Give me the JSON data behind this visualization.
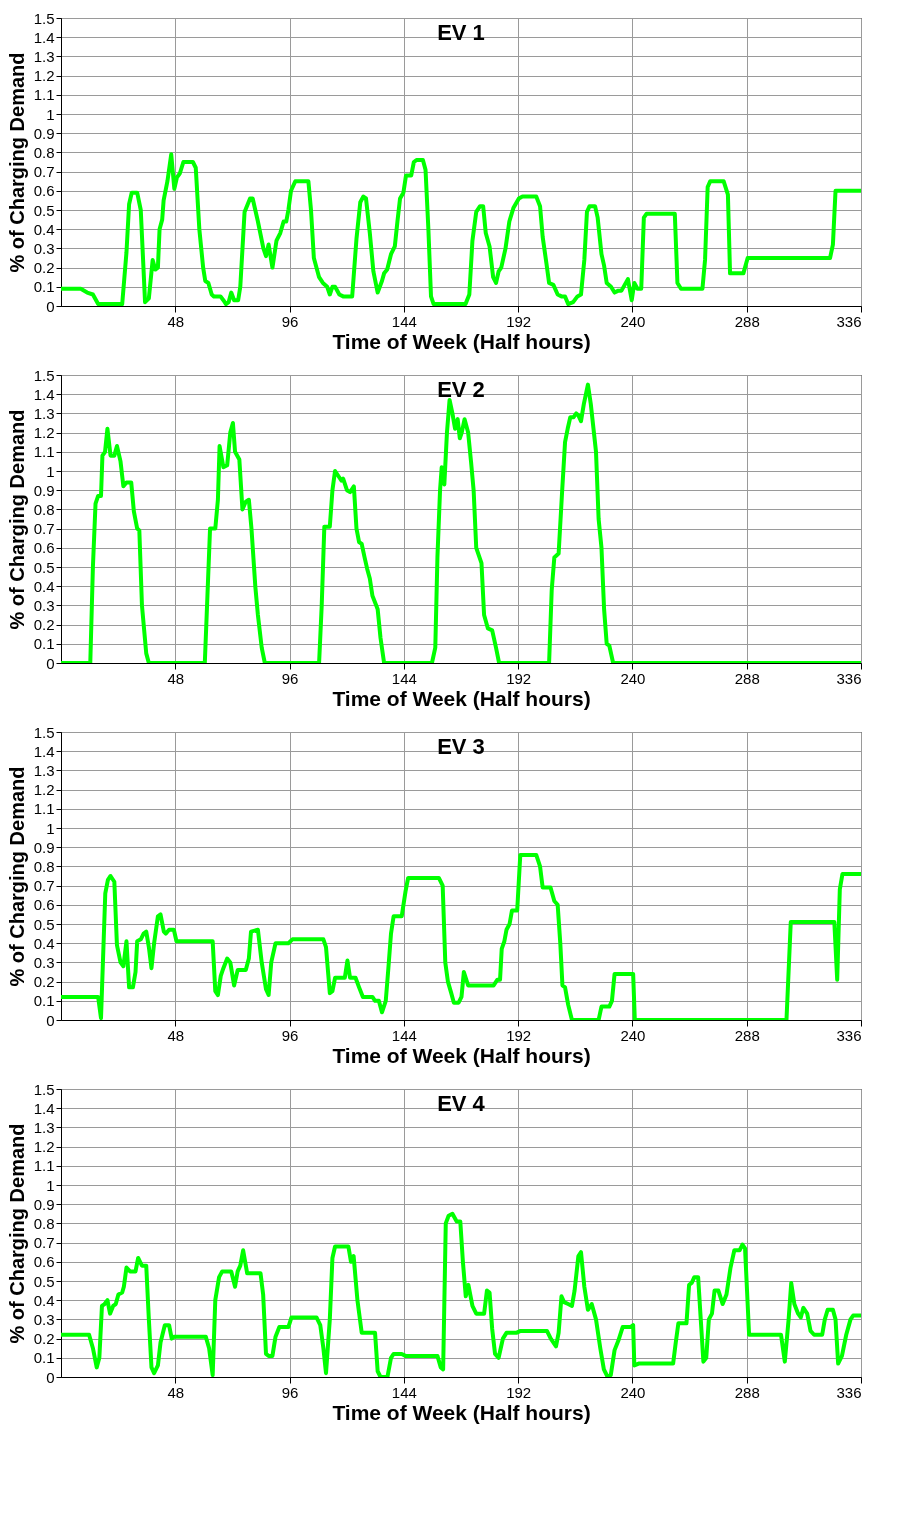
{
  "chart_data": [
    {
      "type": "line",
      "title": "EV 1",
      "xlabel": "Time of Week (Half hours)",
      "ylabel": "% of Charging Demand",
      "xlim": [
        0,
        336
      ],
      "xticks": [
        48,
        96,
        144,
        192,
        240,
        288,
        336
      ],
      "ylim": [
        0,
        1.5
      ],
      "yticks": [
        0,
        0.1,
        0.2,
        0.3,
        0.4,
        0.5,
        0.6,
        0.7,
        0.8,
        0.9,
        1,
        1.1,
        1.2,
        1.3,
        1.4,
        1.5
      ],
      "grid": true,
      "series": [
        {
          "color": "#00ff00",
          "x": [
            0,
            8.3,
            11,
            13.4,
            15.6,
            25.7,
            27.5,
            28.6,
            29.7,
            32,
            33.5,
            35.3,
            36.9,
            38.5,
            39.6,
            40.7,
            41.4,
            42.5,
            43.1,
            44.7,
            46.3,
            47.6,
            48.7,
            49.9,
            51.4,
            55.4,
            56.6,
            58.1,
            59.7,
            60.6,
            61.9,
            63.3,
            64.2,
            67,
            68.2,
            69.3,
            70.4,
            71.5,
            72.7,
            74.4,
            75.3,
            77.1,
            79.4,
            80.5,
            82.7,
            85,
            86.1,
            87.2,
            88.8,
            90.5,
            92.1,
            93.5,
            94.6,
            95.5,
            96.6,
            98.4,
            103.9,
            105,
            106.2,
            108.4,
            110,
            111.8,
            112.9,
            114,
            115.1,
            116.9,
            118.5,
            122.3,
            124.1,
            125.7,
            127,
            128.1,
            129.7,
            131.2,
            133,
            134.8,
            135.7,
            137,
            138.6,
            140.2,
            141.3,
            142.4,
            143.8,
            144.9,
            147.1,
            148.2,
            149.3,
            152,
            153.1,
            154.3,
            155.4,
            156.5,
            169.9,
            171.5,
            172.8,
            174.4,
            176,
            177.3,
            178.4,
            180,
            181.5,
            182.7,
            183.8,
            184.9,
            186.7,
            188.3,
            190,
            192.3,
            193.8,
            199.6,
            201.2,
            202.3,
            203.9,
            205,
            206.8,
            208.6,
            210.2,
            211.7,
            213,
            215.1,
            216.9,
            218.4,
            219.8,
            220.9,
            222,
            224.3,
            225.4,
            227,
            228.1,
            229.2,
            231,
            232.5,
            234.1,
            235.4,
            238.1,
            239.7,
            240.8,
            242.1,
            243.7,
            244.8,
            245.9,
            257.8,
            258.9,
            260.4,
            269.4,
            270.5,
            271.6,
            272.7,
            278.3,
            280.1,
            281,
            286.6,
            288.4,
            323,
            324.2,
            325.3,
            336
          ],
          "values": [
            0.09,
            0.09,
            0.07,
            0.06,
            0.01,
            0.01,
            0.28,
            0.53,
            0.59,
            0.59,
            0.5,
            0.02,
            0.04,
            0.24,
            0.19,
            0.2,
            0.4,
            0.45,
            0.55,
            0.65,
            0.79,
            0.61,
            0.67,
            0.69,
            0.75,
            0.75,
            0.72,
            0.4,
            0.2,
            0.13,
            0.12,
            0.06,
            0.05,
            0.05,
            0.03,
            0.01,
            0.02,
            0.07,
            0.03,
            0.03,
            0.1,
            0.49,
            0.56,
            0.56,
            0.44,
            0.3,
            0.26,
            0.32,
            0.2,
            0.34,
            0.38,
            0.44,
            0.44,
            0.5,
            0.6,
            0.65,
            0.65,
            0.5,
            0.25,
            0.15,
            0.12,
            0.1,
            0.06,
            0.1,
            0.1,
            0.06,
            0.05,
            0.05,
            0.35,
            0.54,
            0.57,
            0.56,
            0.38,
            0.18,
            0.07,
            0.13,
            0.17,
            0.19,
            0.27,
            0.31,
            0.44,
            0.56,
            0.59,
            0.68,
            0.68,
            0.75,
            0.76,
            0.76,
            0.71,
            0.4,
            0.05,
            0.01,
            0.01,
            0.06,
            0.34,
            0.49,
            0.52,
            0.52,
            0.38,
            0.31,
            0.15,
            0.12,
            0.18,
            0.2,
            0.3,
            0.44,
            0.51,
            0.56,
            0.57,
            0.57,
            0.52,
            0.36,
            0.22,
            0.12,
            0.11,
            0.06,
            0.05,
            0.05,
            0.01,
            0.02,
            0.05,
            0.06,
            0.24,
            0.49,
            0.52,
            0.52,
            0.46,
            0.27,
            0.21,
            0.12,
            0.1,
            0.07,
            0.08,
            0.08,
            0.14,
            0.03,
            0.12,
            0.09,
            0.09,
            0.46,
            0.48,
            0.48,
            0.12,
            0.09,
            0.09,
            0.24,
            0.62,
            0.65,
            0.65,
            0.58,
            0.17,
            0.17,
            0.25,
            0.25,
            0.32,
            0.6,
            0.6
          ]
        }
      ]
    },
    {
      "type": "line",
      "title": "EV 2",
      "xlabel": "Time of Week (Half hours)",
      "ylabel": "% of Charging Demand",
      "xlim": [
        0,
        336
      ],
      "xticks": [
        48,
        96,
        144,
        192,
        240,
        288,
        336
      ],
      "ylim": [
        0,
        1.5
      ],
      "yticks": [
        0,
        0.1,
        0.2,
        0.3,
        0.4,
        0.5,
        0.6,
        0.7,
        0.8,
        0.9,
        1,
        1.1,
        1.2,
        1.3,
        1.4,
        1.5
      ],
      "grid": true,
      "series": [
        {
          "color": "#00ff00",
          "x": [
            0,
            12.3,
            13.4,
            14.5,
            15.6,
            16.8,
            17.4,
            18.5,
            19.5,
            20.8,
            22.4,
            23.5,
            25,
            26.2,
            27.5,
            29.5,
            30.6,
            32,
            32.9,
            34,
            35.8,
            36.9,
            60.4,
            61.5,
            62.6,
            64.8,
            65.9,
            66.6,
            68.2,
            69.8,
            71.1,
            72.2,
            73.1,
            74.9,
            76.2,
            77.6,
            78.9,
            80,
            81.6,
            82.7,
            84.3,
            85.6,
            108.4,
            109.5,
            110.6,
            112.9,
            114,
            115.1,
            116.7,
            117.8,
            118.5,
            120.1,
            121.4,
            123,
            124.1,
            125.2,
            126.3,
            127.5,
            128.6,
            129.7,
            130.8,
            132.4,
            133,
            134.2,
            135.7,
            155.8,
            157.2,
            158.1,
            159.2,
            159.9,
            161,
            162.1,
            163.2,
            164.4,
            165.5,
            166.6,
            167.5,
            168.3,
            169.5,
            171,
            172.2,
            173.3,
            174.4,
            176.6,
            177.7,
            179.3,
            181.1,
            182.7,
            184,
            205,
            206.1,
            207.2,
            209,
            210.5,
            211.7,
            212.8,
            213.9,
            215.3,
            216.4,
            217.3,
            218.4,
            219.6,
            221.3,
            222.5,
            224.7,
            225.8,
            227,
            228.1,
            229.2,
            230.3,
            231.9,
            336
          ],
          "values": [
            0,
            0,
            0.5,
            0.83,
            0.87,
            0.87,
            1.08,
            1.1,
            1.22,
            1.08,
            1.08,
            1.13,
            1.05,
            0.92,
            0.94,
            0.94,
            0.79,
            0.7,
            0.69,
            0.3,
            0.05,
            0,
            0,
            0.35,
            0.7,
            0.7,
            0.85,
            1.13,
            1.02,
            1.03,
            1.2,
            1.25,
            1.1,
            1.06,
            0.8,
            0.84,
            0.85,
            0.7,
            0.4,
            0.25,
            0.08,
            0,
            0,
            0.3,
            0.71,
            0.71,
            0.9,
            1,
            0.97,
            0.95,
            0.96,
            0.9,
            0.89,
            0.92,
            0.7,
            0.63,
            0.62,
            0.55,
            0.49,
            0.44,
            0.35,
            0.3,
            0.28,
            0.13,
            0,
            0,
            0.08,
            0.55,
            0.9,
            1.02,
            0.93,
            1.2,
            1.37,
            1.3,
            1.22,
            1.27,
            1.17,
            1.2,
            1.27,
            1.2,
            1.05,
            0.9,
            0.6,
            0.52,
            0.25,
            0.18,
            0.17,
            0.08,
            0,
            0,
            0.38,
            0.55,
            0.57,
            0.9,
            1.15,
            1.22,
            1.28,
            1.28,
            1.3,
            1.29,
            1.26,
            1.35,
            1.45,
            1.35,
            1.1,
            0.75,
            0.6,
            0.28,
            0.1,
            0.09,
            0,
            0
          ]
        }
      ]
    },
    {
      "type": "line",
      "title": "EV 3",
      "xlabel": "Time of Week (Half hours)",
      "ylabel": "% of Charging Demand",
      "xlim": [
        0,
        336
      ],
      "xticks": [
        48,
        96,
        144,
        192,
        240,
        288,
        336
      ],
      "ylim": [
        0,
        1.5
      ],
      "yticks": [
        0,
        0.1,
        0.2,
        0.3,
        0.4,
        0.5,
        0.6,
        0.7,
        0.8,
        0.9,
        1,
        1.1,
        1.2,
        1.3,
        1.4,
        1.5
      ],
      "grid": true,
      "series": [
        {
          "color": "#00ff00",
          "x": [
            0,
            15.6,
            16.8,
            18.6,
            19.7,
            20.8,
            22.4,
            23.5,
            25,
            26.2,
            27.5,
            28.6,
            30.2,
            31.3,
            32,
            33.5,
            34.7,
            35.8,
            36.9,
            38,
            39.1,
            40.7,
            41.8,
            43.2,
            44,
            45.4,
            47.4,
            48.5,
            63.7,
            64.8,
            65.9,
            67.1,
            68.2,
            69.8,
            71.1,
            72.7,
            74.2,
            77.6,
            78.9,
            79.8,
            82.7,
            84.3,
            86.1,
            87.2,
            88.3,
            90.1,
            95.5,
            97.2,
            110.2,
            111.3,
            112.9,
            114,
            115.1,
            119.2,
            120.3,
            121.4,
            123.7,
            125.2,
            126.8,
            130.8,
            131.9,
            133.5,
            134.8,
            136.4,
            137.5,
            138.6,
            139.7,
            143.1,
            144.7,
            145.8,
            158.7,
            160.3,
            161.4,
            162.5,
            163.9,
            165,
            167,
            168.2,
            169.2,
            171,
            181.7,
            183.3,
            184.4,
            185.1,
            186.2,
            187.1,
            188.4,
            189.4,
            191.6,
            192.9,
            199.6,
            201.2,
            202.3,
            205.6,
            207.2,
            208.6,
            209.7,
            210.6,
            211.7,
            213,
            214.6,
            225.8,
            227,
            230.3,
            231.4,
            232.5,
            240.3,
            241,
            304.7,
            306.5,
            324.8,
            326,
            327.1,
            328.2,
            336
          ],
          "values": [
            0.12,
            0.12,
            0.01,
            0.66,
            0.73,
            0.75,
            0.72,
            0.39,
            0.3,
            0.28,
            0.41,
            0.17,
            0.17,
            0.25,
            0.41,
            0.42,
            0.45,
            0.46,
            0.38,
            0.27,
            0.4,
            0.54,
            0.55,
            0.46,
            0.45,
            0.47,
            0.47,
            0.41,
            0.41,
            0.15,
            0.13,
            0.23,
            0.27,
            0.32,
            0.3,
            0.18,
            0.26,
            0.26,
            0.32,
            0.46,
            0.47,
            0.3,
            0.16,
            0.13,
            0.3,
            0.4,
            0.4,
            0.42,
            0.42,
            0.38,
            0.14,
            0.15,
            0.22,
            0.22,
            0.31,
            0.22,
            0.22,
            0.17,
            0.12,
            0.12,
            0.1,
            0.1,
            0.04,
            0.1,
            0.27,
            0.45,
            0.54,
            0.54,
            0.67,
            0.74,
            0.74,
            0.7,
            0.3,
            0.2,
            0.14,
            0.09,
            0.09,
            0.12,
            0.25,
            0.18,
            0.18,
            0.21,
            0.21,
            0.37,
            0.41,
            0.47,
            0.5,
            0.57,
            0.57,
            0.86,
            0.86,
            0.8,
            0.69,
            0.69,
            0.62,
            0.6,
            0.4,
            0.18,
            0.17,
            0.08,
            0,
            0,
            0.07,
            0.07,
            0.1,
            0.24,
            0.24,
            0,
            0,
            0.51,
            0.51,
            0.21,
            0.68,
            0.76,
            0.76
          ]
        }
      ]
    },
    {
      "type": "line",
      "title": "EV 4",
      "xlabel": "Time of Week (Half hours)",
      "ylabel": "% of Charging Demand",
      "xlim": [
        0,
        336
      ],
      "xticks": [
        48,
        96,
        144,
        192,
        240,
        288,
        336
      ],
      "ylim": [
        0,
        1.5
      ],
      "yticks": [
        0,
        0.1,
        0.2,
        0.3,
        0.4,
        0.5,
        0.6,
        0.7,
        0.8,
        0.9,
        1,
        1.1,
        1.2,
        1.3,
        1.4,
        1.5
      ],
      "grid": true,
      "series": [
        {
          "color": "#00ff00",
          "x": [
            0,
            11.8,
            13.4,
            15,
            16.1,
            17.2,
            18.3,
            19.5,
            20.6,
            21.9,
            23,
            24.1,
            25.7,
            26.4,
            27.5,
            29,
            31.3,
            32.4,
            34,
            35.8,
            36.9,
            38,
            39.1,
            40.7,
            41.8,
            43.6,
            45.4,
            46.5,
            47.4,
            60.8,
            62.2,
            63.7,
            64.8,
            66.4,
            67.7,
            71.5,
            73.1,
            74.2,
            75.3,
            76.5,
            78.2,
            83.8,
            84.9,
            86.1,
            87.2,
            88.8,
            90.1,
            91.7,
            95.5,
            96.8,
            107.3,
            108.9,
            110.2,
            111.3,
            112.9,
            114,
            115.1,
            120.7,
            121.8,
            122.9,
            124.5,
            126.3,
            131.9,
            133,
            134.2,
            137.1,
            138.6,
            139.7,
            143.1,
            144.7,
            158.1,
            159.5,
            160.5,
            161.6,
            162.8,
            164.4,
            166.2,
            167.7,
            168.8,
            170,
            171.1,
            172.8,
            174.4,
            177.7,
            178.9,
            180,
            181.1,
            182.3,
            183.8,
            185.6,
            187.1,
            191.2,
            193,
            204.1,
            205.7,
            207.9,
            209,
            210.2,
            211.3,
            213,
            214.6,
            215.7,
            217.3,
            218.4,
            219.8,
            221.3,
            222.9,
            224.7,
            226.5,
            228,
            229.6,
            230.9,
            232.5,
            234.1,
            235.9,
            239.2,
            240.3,
            240.8,
            242.6,
            257.1,
            258.2,
            259.3,
            262.7,
            263.8,
            264.9,
            266,
            267.6,
            268.7,
            269.8,
            271,
            272.1,
            273.4,
            274.5,
            276.1,
            277.9,
            279.5,
            281.2,
            282.8,
            285,
            286.2,
            287.3,
            289,
            302.4,
            304,
            305.6,
            306.7,
            308,
            309.6,
            310.7,
            311.8,
            313.4,
            314.8,
            316.3,
            319.7,
            320.8,
            322,
            324.2,
            325.3,
            326.4,
            328,
            329.8,
            331.6,
            332.7,
            336
          ],
          "values": [
            0.22,
            0.22,
            0.15,
            0.05,
            0.1,
            0.37,
            0.38,
            0.4,
            0.33,
            0.37,
            0.38,
            0.43,
            0.44,
            0.47,
            0.57,
            0.55,
            0.55,
            0.62,
            0.58,
            0.58,
            0.3,
            0.05,
            0.02,
            0.06,
            0.18,
            0.27,
            0.27,
            0.2,
            0.21,
            0.21,
            0.15,
            0.01,
            0.4,
            0.52,
            0.55,
            0.55,
            0.47,
            0.55,
            0.58,
            0.66,
            0.54,
            0.54,
            0.43,
            0.12,
            0.11,
            0.11,
            0.21,
            0.26,
            0.26,
            0.31,
            0.31,
            0.27,
            0.15,
            0.02,
            0.3,
            0.62,
            0.68,
            0.68,
            0.6,
            0.63,
            0.4,
            0.23,
            0.23,
            0.03,
            0,
            0,
            0.1,
            0.12,
            0.12,
            0.11,
            0.11,
            0.05,
            0.04,
            0.8,
            0.84,
            0.85,
            0.81,
            0.81,
            0.6,
            0.42,
            0.48,
            0.37,
            0.33,
            0.33,
            0.45,
            0.44,
            0.25,
            0.12,
            0.1,
            0.2,
            0.23,
            0.23,
            0.24,
            0.24,
            0.2,
            0.16,
            0.23,
            0.42,
            0.39,
            0.38,
            0.37,
            0.45,
            0.63,
            0.65,
            0.47,
            0.35,
            0.38,
            0.3,
            0.15,
            0.04,
            0,
            0.01,
            0.14,
            0.19,
            0.26,
            0.26,
            0.27,
            0.06,
            0.07,
            0.07,
            0.18,
            0.28,
            0.28,
            0.48,
            0.49,
            0.52,
            0.52,
            0.3,
            0.08,
            0.1,
            0.3,
            0.33,
            0.45,
            0.45,
            0.38,
            0.43,
            0.57,
            0.66,
            0.66,
            0.69,
            0.67,
            0.22,
            0.22,
            0.08,
            0.3,
            0.49,
            0.38,
            0.33,
            0.31,
            0.36,
            0.33,
            0.24,
            0.22,
            0.22,
            0.3,
            0.35,
            0.35,
            0.3,
            0.07,
            0.11,
            0.22,
            0.3,
            0.32,
            0.32
          ]
        }
      ]
    }
  ]
}
